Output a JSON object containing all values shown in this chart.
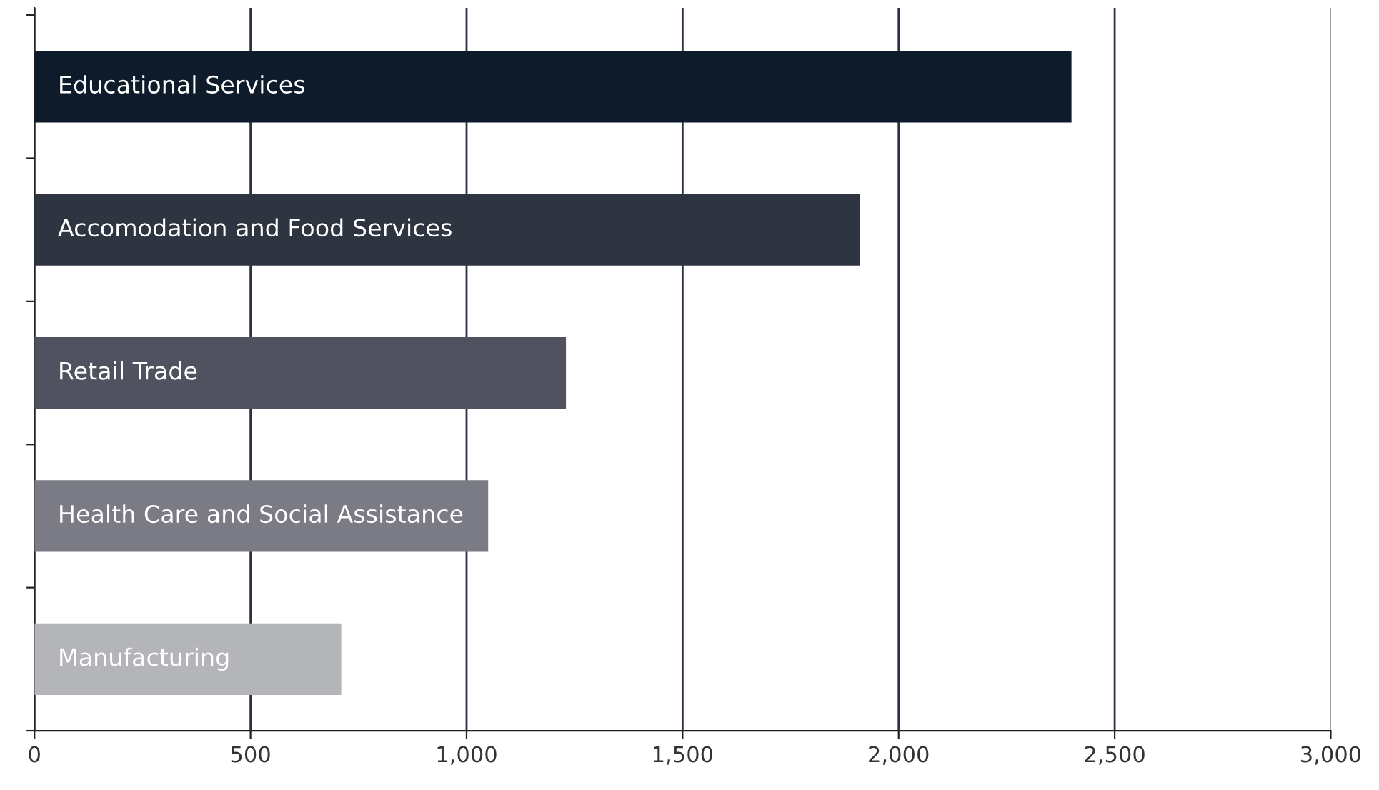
{
  "chart_data": {
    "type": "bar",
    "orientation": "horizontal",
    "categories": [
      "Educational Services",
      "Accomodation and Food Services",
      "Retail Trade",
      "Health Care and Social Assistance",
      "Manufacturing"
    ],
    "values": [
      2400,
      1910,
      1230,
      1050,
      710
    ],
    "colors": [
      "#0d1b2a",
      "#2e3541",
      "#50535f",
      "#7b7b86",
      "#b4b5b9"
    ],
    "xlim": [
      0,
      3000
    ],
    "xticks": [
      0,
      {
        "value": 500,
        "label": "500"
      },
      {
        "value": 1000,
        "label": "1,000"
      },
      {
        "value": 1500,
        "label": "1,500"
      },
      {
        "value": 2000,
        "label": "2,000"
      },
      {
        "value": 2500,
        "label": "2,500"
      },
      {
        "value": 3000,
        "label": "3,000"
      }
    ],
    "grid": "x",
    "tick_labels": "x",
    "legend": false
  }
}
